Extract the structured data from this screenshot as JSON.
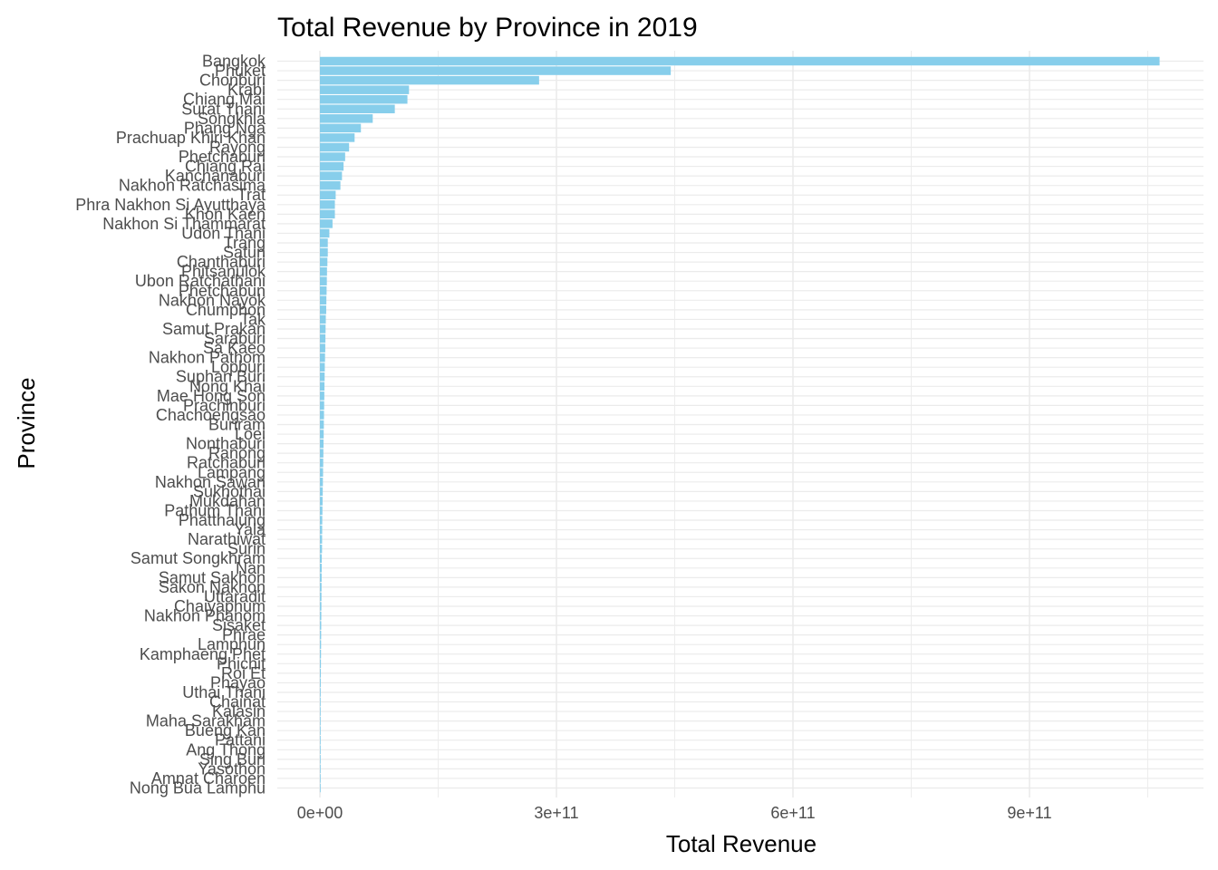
{
  "chart_data": {
    "type": "bar",
    "orientation": "horizontal",
    "title": "Total Revenue by Province in 2019",
    "xlabel": "Total Revenue",
    "ylabel": "Province",
    "xlim": [
      0,
      1100000000000
    ],
    "x_ticks": [
      {
        "value": 0,
        "label": "0e+00"
      },
      {
        "value": 300000000000,
        "label": "3e+11"
      },
      {
        "value": 600000000000,
        "label": "6e+11"
      },
      {
        "value": 900000000000,
        "label": "9e+11"
      }
    ],
    "grid": true,
    "bar_color": "#87CEEB",
    "grid_color": "#EBEBEB",
    "categories": [
      "Bangkok",
      "Phuket",
      "Chonburi",
      "Krabi",
      "Chiang Mai",
      "Surat Thani",
      "Songkhla",
      "Phang Nga",
      "Prachuap Khiri Khan",
      "Rayong",
      "Phetchaburi",
      "Chiang Rai",
      "Kanchanaburi",
      "Nakhon Ratchasima",
      "Trat",
      "Phra Nakhon Si Ayutthaya",
      "Khon Kaen",
      "Nakhon Si Thammarat",
      "Udon Thani",
      "Trang",
      "Satun",
      "Chanthaburi",
      "Phitsanulok",
      "Ubon Ratchathani",
      "Phetchabun",
      "Nakhon Nayok",
      "Chumphon",
      "Tak",
      "Samut Prakan",
      "Saraburi",
      "Sa Kaeo",
      "Nakhon Pathom",
      "Lopburi",
      "Suphan Buri",
      "Nong Khai",
      "Mae Hong Son",
      "Prachinburi",
      "Chachoengsao",
      "Buriram",
      "Loei",
      "Nonthaburi",
      "Ranong",
      "Ratchaburi",
      "Lampang",
      "Nakhon Sawan",
      "Sukhothai",
      "Mukdahan",
      "Pathum Thani",
      "Phatthalung",
      "Yala",
      "Narathiwat",
      "Surin",
      "Samut Songkhram",
      "Nan",
      "Samut Sakhon",
      "Sakon Nakhon",
      "Uttaradit",
      "Chaiyaphum",
      "Nakhon Phanom",
      "Sisaket",
      "Phrae",
      "Lamphun",
      "Kamphaeng Phet",
      "Phichit",
      "Roi Et",
      "Phayao",
      "Uthai Thani",
      "Chainat",
      "Kalasin",
      "Maha Sarakham",
      "Bueng Kan",
      "Pattani",
      "Ang Thong",
      "Sing Buri",
      "Yasothon",
      "Amnat Charoen",
      "Nong Bua Lamphu"
    ],
    "values": [
      1065000000000,
      445000000000,
      278000000000,
      113000000000,
      111000000000,
      95000000000,
      67000000000,
      52000000000,
      44000000000,
      37000000000,
      32000000000,
      30000000000,
      28000000000,
      26000000000,
      20000000000,
      19000000000,
      19000000000,
      16000000000,
      12000000000,
      10000000000,
      10000000000,
      9500000000,
      9000000000,
      8800000000,
      8500000000,
      8200000000,
      8000000000,
      7500000000,
      7200000000,
      7000000000,
      6800000000,
      6500000000,
      6200000000,
      6000000000,
      5800000000,
      5600000000,
      5400000000,
      5200000000,
      5000000000,
      4800000000,
      4600000000,
      4400000000,
      4200000000,
      4000000000,
      3800000000,
      3600000000,
      3400000000,
      3200000000,
      3000000000,
      2900000000,
      2800000000,
      2700000000,
      2400000000,
      2300000000,
      2200000000,
      2100000000,
      2000000000,
      1900000000,
      1800000000,
      1700000000,
      1600000000,
      1500000000,
      1400000000,
      1300000000,
      1200000000,
      1100000000,
      1000000000,
      900000000,
      850000000,
      800000000,
      750000000,
      700000000,
      650000000,
      600000000,
      550000000,
      500000000,
      450000000
    ]
  }
}
